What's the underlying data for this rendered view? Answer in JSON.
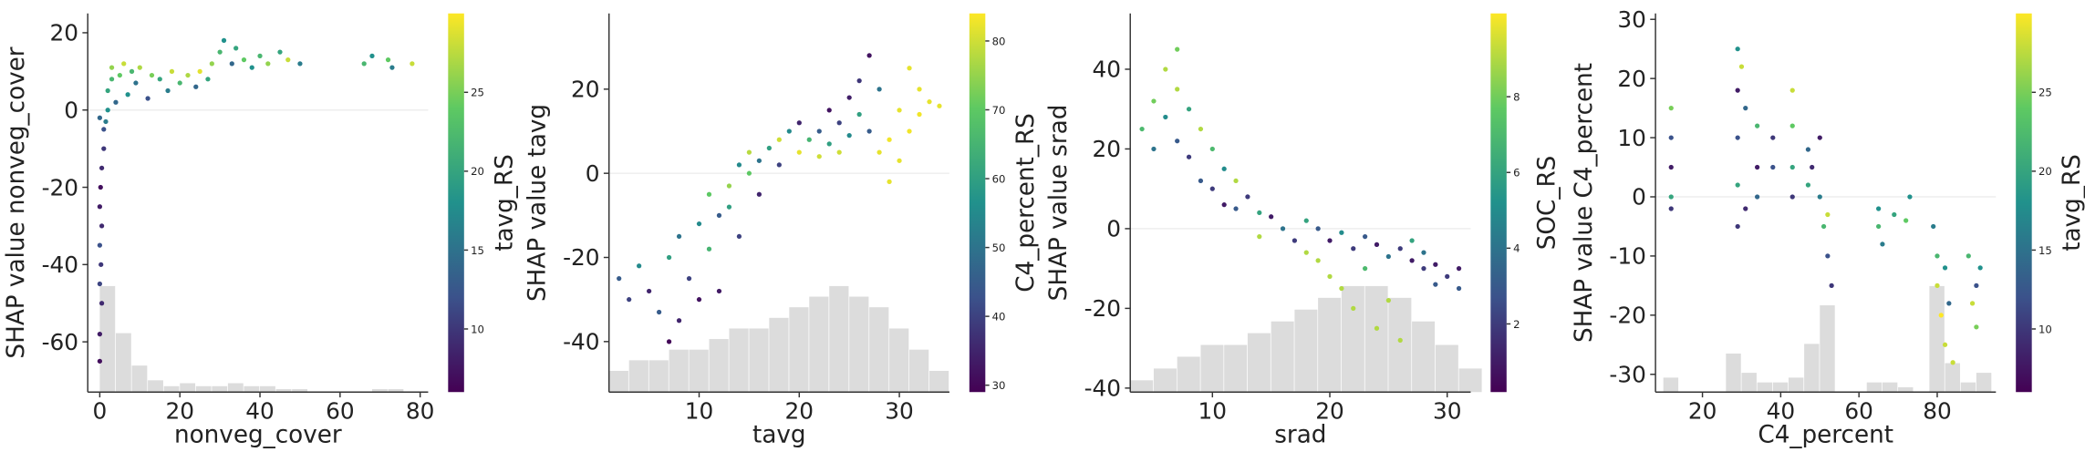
{
  "chart_data": [
    {
      "type": "scatter",
      "xlabel": "nonveg_cover",
      "ylabel": "SHAP value nonveg_cover",
      "x": [
        0,
        0,
        0.5,
        0,
        0.3,
        0,
        0.5,
        0,
        0.2,
        0.5,
        1,
        1,
        0,
        1.5,
        2,
        2,
        3,
        3,
        4,
        5,
        6,
        7,
        8,
        9,
        10,
        12,
        13,
        15,
        17,
        18,
        20,
        22,
        24,
        25,
        27,
        28,
        30,
        31,
        33,
        34,
        36,
        38,
        40,
        42,
        45,
        47,
        50,
        66,
        68,
        72,
        73,
        78
      ],
      "values": [
        -65,
        -58,
        -50,
        -45,
        -40,
        -35,
        -30,
        -25,
        -20,
        -15,
        -10,
        -5,
        -2,
        -3,
        0,
        5,
        8,
        11,
        2,
        9,
        12,
        4,
        10,
        7,
        11,
        3,
        9,
        8,
        5,
        10,
        7,
        9,
        6,
        10,
        8,
        12,
        15,
        18,
        12,
        16,
        13,
        11,
        14,
        12,
        15,
        13,
        12,
        12,
        14,
        13,
        11,
        12
      ],
      "color_values": [
        7,
        8,
        9,
        11,
        10,
        12,
        9,
        8,
        7,
        9,
        10,
        12,
        14,
        16,
        18,
        20,
        22,
        26,
        14,
        24,
        28,
        18,
        22,
        15,
        27,
        12,
        25,
        20,
        16,
        28,
        22,
        27,
        14,
        29,
        20,
        26,
        22,
        18,
        14,
        20,
        24,
        18,
        22,
        26,
        20,
        28,
        16,
        22,
        18,
        24,
        16,
        28
      ],
      "xlim": [
        -3,
        82
      ],
      "ylim": [
        -73,
        25
      ],
      "xticks": [
        0,
        20,
        40,
        60,
        80
      ],
      "yticks": [
        -60,
        -40,
        -20,
        0,
        20
      ],
      "hline": 0,
      "colorbar": {
        "label": "tavg_RS",
        "lim": [
          6,
          30
        ],
        "ticks": [
          10,
          15,
          20,
          25
        ]
      },
      "hist_bins": [
        0,
        4,
        8,
        12,
        16,
        20,
        24,
        28,
        32,
        36,
        40,
        44,
        48,
        52,
        56,
        60,
        64,
        68,
        72,
        76,
        80
      ],
      "hist_counts": [
        36,
        20,
        9,
        4,
        2,
        3,
        2,
        2,
        3,
        2,
        2,
        1,
        1,
        0,
        0,
        0,
        0,
        1,
        1,
        0
      ]
    },
    {
      "type": "scatter",
      "xlabel": "tavg",
      "ylabel": "SHAP value tavg",
      "x": [
        2,
        3,
        4,
        5,
        6,
        7,
        7,
        8,
        8,
        9,
        10,
        10,
        11,
        11,
        12,
        12,
        13,
        13,
        14,
        14,
        15,
        15,
        16,
        16,
        17,
        18,
        18,
        19,
        20,
        20,
        21,
        22,
        22,
        23,
        23,
        24,
        24,
        25,
        25,
        26,
        26,
        27,
        27,
        28,
        28,
        29,
        29,
        30,
        30,
        31,
        32,
        32,
        33,
        34,
        31
      ],
      "values": [
        -25,
        -30,
        -22,
        -28,
        -33,
        -20,
        -40,
        -15,
        -35,
        -25,
        -12,
        -30,
        -18,
        -5,
        -10,
        -28,
        -8,
        -3,
        -15,
        2,
        0,
        5,
        3,
        -5,
        6,
        8,
        2,
        10,
        5,
        12,
        8,
        10,
        4,
        15,
        7,
        12,
        5,
        18,
        9,
        22,
        14,
        28,
        10,
        20,
        5,
        8,
        -2,
        15,
        3,
        10,
        20,
        14,
        17,
        16,
        25
      ],
      "color_values": [
        45,
        40,
        55,
        35,
        45,
        60,
        30,
        50,
        35,
        40,
        55,
        32,
        65,
        70,
        45,
        33,
        60,
        75,
        40,
        55,
        70,
        78,
        50,
        35,
        60,
        80,
        40,
        55,
        82,
        35,
        65,
        45,
        80,
        32,
        60,
        40,
        80,
        34,
        55,
        38,
        60,
        32,
        45,
        50,
        82,
        83,
        82,
        82,
        82,
        83,
        82,
        83,
        82,
        82,
        82
      ],
      "xlim": [
        1,
        35
      ],
      "ylim": [
        -52,
        38
      ],
      "xticks": [
        10,
        20,
        30
      ],
      "yticks": [
        -40,
        -20,
        0,
        20
      ],
      "hline": 0,
      "colorbar": {
        "label": "C4_percent_RS",
        "lim": [
          29,
          84
        ],
        "ticks": [
          30,
          40,
          50,
          60,
          70,
          80
        ]
      },
      "hist_bins": [
        1,
        3,
        5,
        7,
        9,
        11,
        13,
        15,
        17,
        19,
        21,
        23,
        25,
        27,
        29,
        31,
        33,
        35
      ],
      "hist_counts": [
        2,
        3,
        3,
        4,
        4,
        5,
        6,
        6,
        7,
        8,
        9,
        10,
        9,
        8,
        6,
        4,
        2
      ]
    },
    {
      "type": "scatter",
      "xlabel": "srad",
      "ylabel": "SHAP value srad",
      "x": [
        4,
        5,
        5,
        6,
        6,
        7,
        7,
        7,
        8,
        8,
        9,
        9,
        10,
        10,
        11,
        11,
        12,
        12,
        13,
        14,
        14,
        15,
        16,
        17,
        18,
        18,
        19,
        19,
        20,
        20,
        21,
        21,
        22,
        22,
        23,
        23,
        24,
        24,
        25,
        25,
        26,
        26,
        27,
        27,
        28,
        28,
        29,
        29,
        30,
        31,
        31
      ],
      "values": [
        25,
        32,
        20,
        40,
        28,
        45,
        22,
        35,
        30,
        18,
        25,
        12,
        20,
        10,
        15,
        6,
        12,
        5,
        8,
        4,
        -2,
        3,
        0,
        -3,
        -6,
        2,
        -8,
        0,
        -12,
        -3,
        -15,
        -1,
        -5,
        -20,
        -2,
        -10,
        -25,
        -4,
        -18,
        -7,
        -5,
        -28,
        -8,
        -3,
        -10,
        -6,
        -9,
        -14,
        -12,
        -15,
        -10
      ],
      "color_values": [
        7,
        8,
        4,
        9,
        5,
        8,
        3,
        9,
        6,
        2,
        9,
        3,
        7,
        2,
        5,
        1,
        9,
        3,
        2,
        6,
        9,
        1,
        4,
        2,
        9,
        6,
        9,
        3,
        9,
        1,
        9,
        5,
        2,
        9,
        3,
        7,
        9,
        1,
        9,
        4,
        2,
        9,
        1,
        6,
        2,
        4,
        1,
        3,
        2,
        3,
        1
      ],
      "xlim": [
        3,
        32
      ],
      "ylim": [
        -41,
        54
      ],
      "xticks": [
        10,
        20,
        30
      ],
      "yticks": [
        -40,
        -20,
        0,
        20,
        40
      ],
      "hline": 0,
      "colorbar": {
        "label": "SOC_RS",
        "lim": [
          0.2,
          10.2
        ],
        "ticks": [
          2,
          4,
          6,
          8
        ]
      },
      "hist_bins": [
        3,
        5,
        7,
        9,
        11,
        13,
        15,
        17,
        19,
        21,
        23,
        25,
        27,
        29,
        31,
        33
      ],
      "hist_counts": [
        1,
        2,
        3,
        4,
        4,
        5,
        6,
        7,
        8,
        9,
        9,
        8,
        6,
        4,
        2
      ]
    },
    {
      "type": "scatter",
      "xlabel": "C4_percent",
      "ylabel": "SHAP value C4_percent",
      "x": [
        12,
        12,
        12,
        12,
        12,
        29,
        29,
        29,
        29,
        29,
        30,
        31,
        31,
        34,
        34,
        34,
        38,
        38,
        43,
        43,
        43,
        43,
        47,
        47,
        48,
        50,
        50,
        51,
        52,
        52,
        53,
        65,
        65,
        66,
        69,
        72,
        73,
        79,
        80,
        80,
        81,
        82,
        82,
        83,
        84,
        88,
        89,
        90,
        90,
        91
      ],
      "values": [
        15,
        10,
        5,
        0,
        -2,
        25,
        18,
        10,
        2,
        -5,
        22,
        15,
        -2,
        12,
        5,
        0,
        10,
        5,
        18,
        12,
        5,
        0,
        8,
        2,
        5,
        10,
        0,
        -5,
        -10,
        -3,
        -15,
        -2,
        -5,
        -8,
        -3,
        -4,
        0,
        -5,
        -10,
        -15,
        -20,
        -12,
        -25,
        -18,
        -28,
        -10,
        -18,
        -15,
        -22,
        -12
      ],
      "color_values": [
        25,
        12,
        8,
        20,
        10,
        18,
        8,
        12,
        20,
        10,
        28,
        14,
        9,
        22,
        8,
        14,
        10,
        12,
        28,
        24,
        20,
        10,
        14,
        20,
        9,
        8,
        16,
        22,
        12,
        28,
        10,
        18,
        22,
        16,
        20,
        24,
        18,
        16,
        22,
        28,
        30,
        18,
        28,
        14,
        28,
        22,
        28,
        12,
        25,
        18
      ],
      "xlim": [
        8,
        95
      ],
      "ylim": [
        -33,
        31
      ],
      "xticks": [
        20,
        40,
        60,
        80
      ],
      "yticks": [
        -30,
        -20,
        -10,
        0,
        10,
        20,
        30
      ],
      "hline": 0,
      "colorbar": {
        "label": "tavg_RS",
        "lim": [
          6,
          30
        ],
        "ticks": [
          10,
          15,
          20,
          25
        ]
      },
      "hist_bins": [
        10,
        14,
        18,
        22,
        26,
        30,
        34,
        38,
        42,
        46,
        50,
        54,
        58,
        62,
        66,
        70,
        74,
        78,
        82,
        86,
        90,
        94
      ],
      "hist_counts": [
        3,
        0,
        0,
        0,
        8,
        4,
        2,
        2,
        3,
        10,
        18,
        0,
        0,
        2,
        2,
        1,
        0,
        22,
        6,
        2,
        4
      ]
    }
  ]
}
